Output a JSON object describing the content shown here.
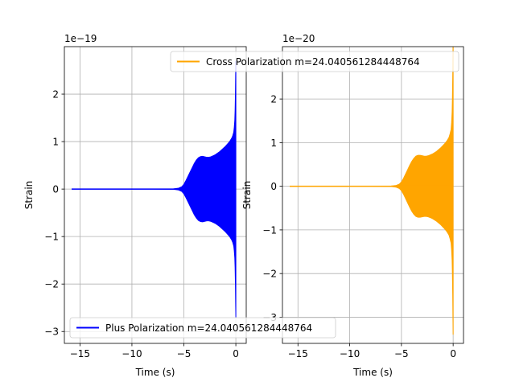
{
  "chart_data": [
    {
      "type": "line",
      "xlabel": "Time (s)",
      "ylabel": "Strain",
      "offset_text": "1e−19",
      "xlim": [
        -16.5,
        1.0
      ],
      "ylim": [
        -3.25,
        3.0
      ],
      "xticks": [
        -15,
        -10,
        -5,
        0
      ],
      "xtick_labels": [
        "−15",
        "−10",
        "−5",
        "0"
      ],
      "yticks": [
        -3,
        -2,
        -1,
        0,
        1,
        2
      ],
      "ytick_labels": [
        "−3",
        "−2",
        "−1",
        "0",
        "1",
        "2"
      ],
      "grid": true,
      "legend": {
        "placement": "lower-left",
        "label": "Plus Polarization m=24.040561284448764"
      },
      "series": [
        {
          "name": "Plus Polarization m=24.040561284448764",
          "color": "#0000ff",
          "envelope_x": [
            -15.8,
            -8.0,
            -6.0,
            -5.5,
            -5.2,
            -5.0,
            -4.8,
            -4.6,
            -4.4,
            -4.2,
            -4.0,
            -3.8,
            -3.6,
            -3.4,
            -3.2,
            -3.0,
            -2.8,
            -2.6,
            -2.4,
            -2.2,
            -2.0,
            -1.8,
            -1.6,
            -1.4,
            -1.2,
            -1.0,
            -0.8,
            -0.6,
            -0.4,
            -0.3,
            -0.2,
            -0.15,
            -0.1,
            -0.07,
            -0.04,
            -0.02,
            0.0
          ],
          "envelope_amp": [
            0.0,
            0.0,
            0.005,
            0.02,
            0.05,
            0.1,
            0.18,
            0.27,
            0.36,
            0.45,
            0.54,
            0.61,
            0.66,
            0.685,
            0.69,
            0.68,
            0.67,
            0.67,
            0.68,
            0.7,
            0.72,
            0.75,
            0.78,
            0.82,
            0.86,
            0.9,
            0.95,
            1.0,
            1.07,
            1.12,
            1.2,
            1.3,
            1.45,
            1.65,
            2.0,
            2.4,
            2.7
          ]
        }
      ]
    },
    {
      "type": "line",
      "xlabel": "Time (s)",
      "ylabel": "Strain",
      "offset_text": "1e−20",
      "xlim": [
        -16.5,
        1.0
      ],
      "ylim": [
        -3.6,
        3.2
      ],
      "xticks": [
        -15,
        -10,
        -5,
        0
      ],
      "xtick_labels": [
        "−15",
        "−10",
        "−5",
        "0"
      ],
      "yticks": [
        -3,
        -2,
        -1,
        0,
        1,
        2
      ],
      "ytick_labels": [
        "−3",
        "−2",
        "−1",
        "0",
        "1",
        "2"
      ],
      "grid": true,
      "legend": {
        "placement": "upper-right",
        "label": "Cross Polarization m=24.040561284448764"
      },
      "series": [
        {
          "name": "Cross Polarization m=24.040561284448764",
          "color": "#ffa500",
          "envelope_x": [
            -15.8,
            -8.0,
            -6.0,
            -5.5,
            -5.2,
            -5.0,
            -4.8,
            -4.6,
            -4.4,
            -4.2,
            -4.0,
            -3.8,
            -3.6,
            -3.4,
            -3.2,
            -3.0,
            -2.8,
            -2.6,
            -2.4,
            -2.2,
            -2.0,
            -1.8,
            -1.6,
            -1.4,
            -1.2,
            -1.0,
            -0.8,
            -0.6,
            -0.4,
            -0.3,
            -0.2,
            -0.15,
            -0.1,
            -0.07,
            -0.04,
            -0.02,
            0.0
          ],
          "envelope_amp": [
            0.0,
            0.0,
            0.005,
            0.02,
            0.05,
            0.1,
            0.18,
            0.28,
            0.38,
            0.48,
            0.57,
            0.64,
            0.69,
            0.71,
            0.71,
            0.7,
            0.69,
            0.69,
            0.7,
            0.72,
            0.74,
            0.77,
            0.8,
            0.84,
            0.88,
            0.93,
            0.98,
            1.04,
            1.12,
            1.2,
            1.3,
            1.45,
            1.7,
            2.0,
            2.5,
            3.0,
            3.4
          ]
        }
      ]
    }
  ]
}
